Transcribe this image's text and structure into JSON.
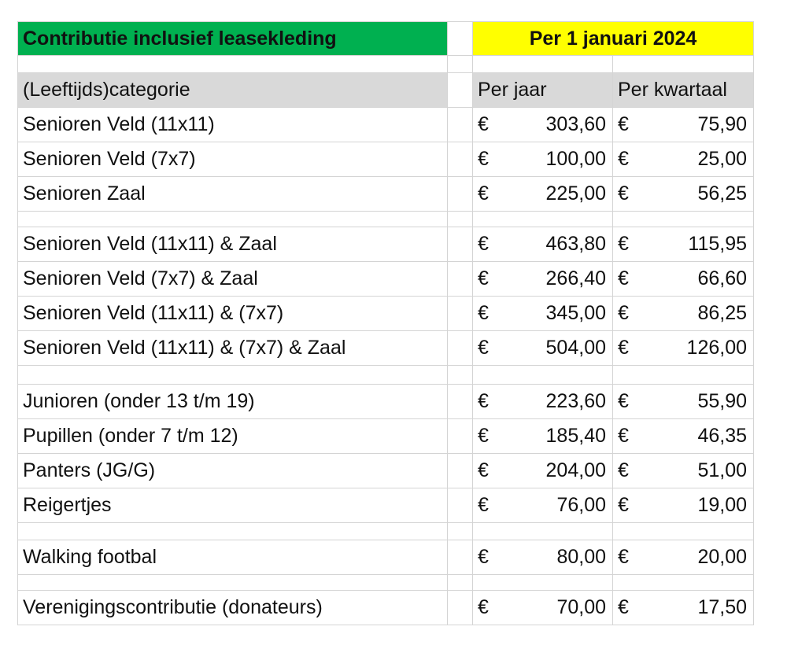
{
  "header": {
    "title": "Contributie inclusief leasekleding",
    "date": "Per 1 januari 2024"
  },
  "columns": {
    "category": "(Leeftijds)categorie",
    "per_year": "Per jaar",
    "per_quarter": "Per kwartaal"
  },
  "currency": "€",
  "groups": [
    [
      {
        "category": "Senioren Veld (11x11)",
        "per_year": "303,60",
        "per_quarter": "75,90"
      },
      {
        "category": "Senioren Veld (7x7)",
        "per_year": "100,00",
        "per_quarter": "25,00"
      },
      {
        "category": "Senioren Zaal",
        "per_year": "225,00",
        "per_quarter": "56,25"
      }
    ],
    [
      {
        "category": "Senioren Veld (11x11) & Zaal",
        "per_year": "463,80",
        "per_quarter": "115,95"
      },
      {
        "category": "Senioren Veld (7x7) & Zaal",
        "per_year": "266,40",
        "per_quarter": "66,60"
      },
      {
        "category": "Senioren Veld (11x11) & (7x7)",
        "per_year": "345,00",
        "per_quarter": "86,25"
      },
      {
        "category": "Senioren Veld (11x11) & (7x7) & Zaal",
        "per_year": "504,00",
        "per_quarter": "126,00"
      }
    ],
    [
      {
        "category": "Junioren (onder 13 t/m 19)",
        "per_year": "223,60",
        "per_quarter": "55,90"
      },
      {
        "category": "Pupillen (onder 7 t/m 12)",
        "per_year": "185,40",
        "per_quarter": "46,35"
      },
      {
        "category": "Panters (JG/G)",
        "per_year": "204,00",
        "per_quarter": "51,00"
      },
      {
        "category": "Reigertjes",
        "per_year": "76,00",
        "per_quarter": "19,00"
      }
    ],
    [
      {
        "category": "Walking footbal",
        "per_year": "80,00",
        "per_quarter": "20,00"
      }
    ],
    [
      {
        "category": "Verenigingscontributie (donateurs)",
        "per_year": "70,00",
        "per_quarter": "17,50"
      }
    ]
  ]
}
